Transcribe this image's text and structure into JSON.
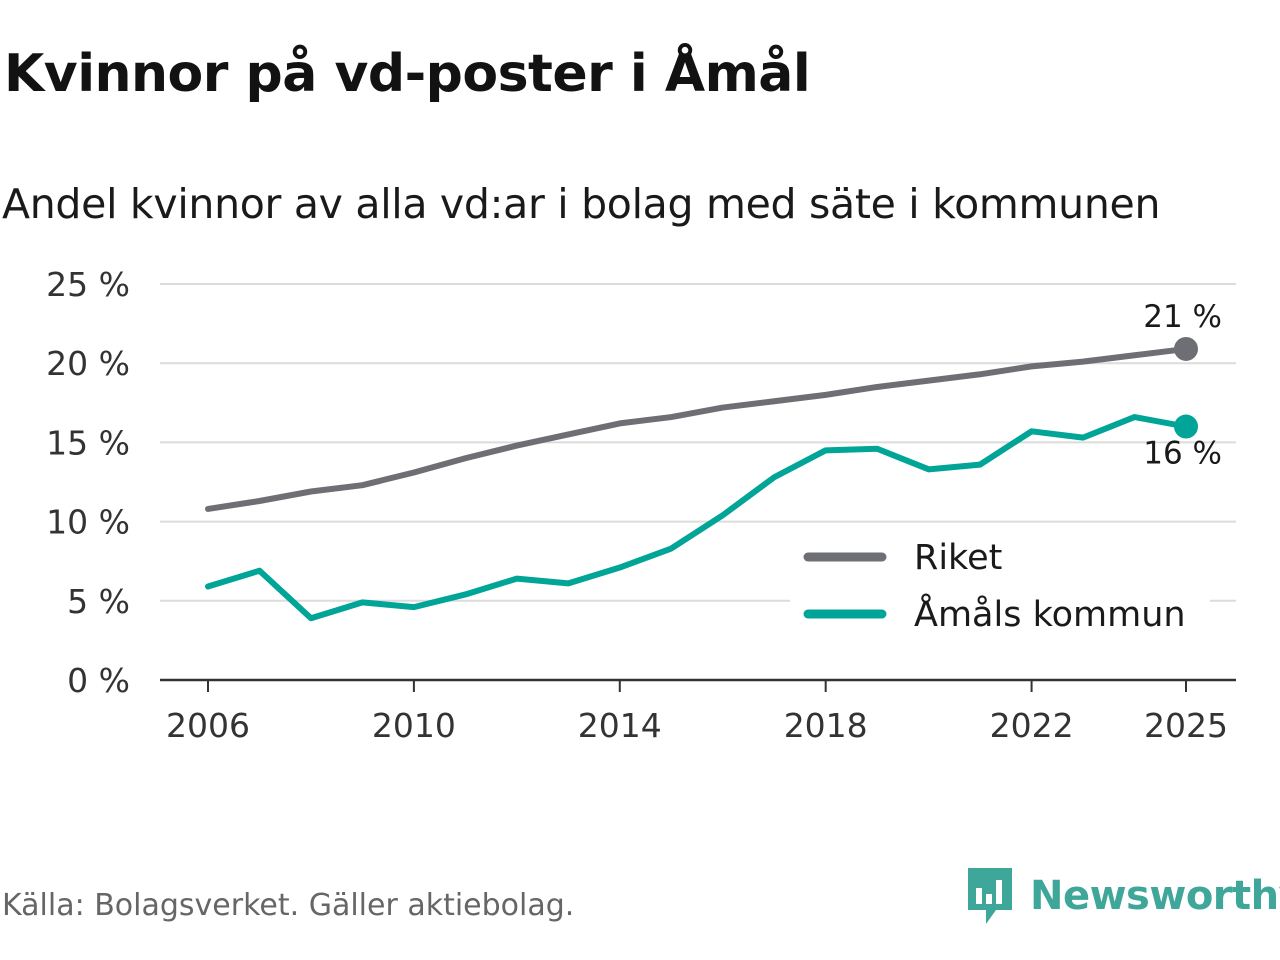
{
  "title": "Kvinnor på vd-poster i Åmål",
  "subtitle": "Andel kvinnor av alla vd:ar i bolag med säte i kommunen",
  "source": "Källa: Bolagsverket. Gäller aktiebolag.",
  "brand": "Newsworthy",
  "colors": {
    "riket": "#6e6e75",
    "amal": "#00a598",
    "grid": "#dcdcdc",
    "axis": "#333333"
  },
  "chart_data": {
    "type": "line",
    "x": [
      2006,
      2007,
      2008,
      2009,
      2010,
      2011,
      2012,
      2013,
      2014,
      2015,
      2016,
      2017,
      2018,
      2019,
      2020,
      2021,
      2022,
      2023,
      2024,
      2025
    ],
    "series": [
      {
        "name": "Riket",
        "color": "#6e6e75",
        "values": [
          10.8,
          11.3,
          11.9,
          12.3,
          13.1,
          14.0,
          14.8,
          15.5,
          16.2,
          16.6,
          17.2,
          17.6,
          18.0,
          18.5,
          18.9,
          19.3,
          19.8,
          20.1,
          20.5,
          20.9
        ],
        "end_label": "21 %"
      },
      {
        "name": "Åmåls kommun",
        "color": "#00a598",
        "values": [
          5.9,
          6.9,
          3.9,
          4.9,
          4.6,
          5.4,
          6.4,
          6.1,
          7.1,
          8.3,
          10.4,
          12.8,
          14.5,
          14.6,
          13.3,
          13.6,
          15.7,
          15.3,
          16.6,
          16.0
        ],
        "end_label": "16 %"
      }
    ],
    "ylim": [
      0,
      25
    ],
    "yticks": [
      0,
      5,
      10,
      15,
      20,
      25
    ],
    "ytick_labels": [
      "0 %",
      "5 %",
      "10 %",
      "15 %",
      "20 %",
      "25 %"
    ],
    "xticks": [
      2006,
      2010,
      2014,
      2018,
      2022,
      2025
    ],
    "xtick_labels": [
      "2006",
      "2010",
      "2014",
      "2018",
      "2022",
      "2025"
    ],
    "legend": [
      {
        "label": "Riket"
      },
      {
        "label": "Åmåls kommun"
      }
    ],
    "legend_position": "bottom-right",
    "grid": true
  }
}
